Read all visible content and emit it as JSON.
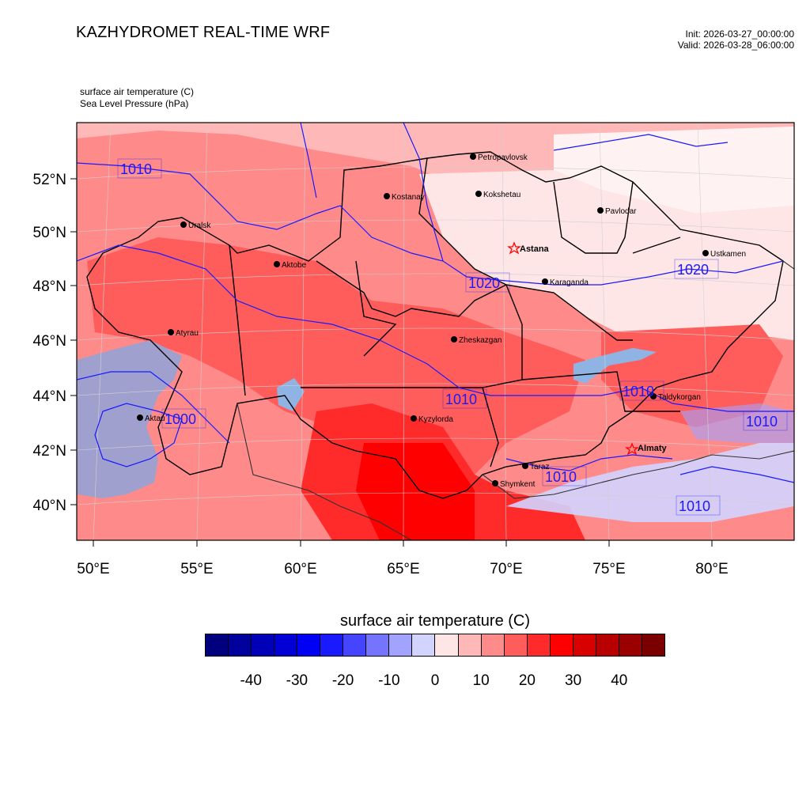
{
  "title": "KAZHYDROMET REAL-TIME WRF",
  "init": "Init: 2026-03-27_00:00:00",
  "valid": "Valid: 2026-03-28_06:00:00",
  "fields": [
    "surface air temperature   (C)",
    "Sea Level Pressure   (hPa)"
  ],
  "lon_labels": [
    "50°E",
    "55°E",
    "60°E",
    "65°E",
    "70°E",
    "75°E",
    "80°E"
  ],
  "lat_labels": [
    "52°N",
    "50°N",
    "48°N",
    "46°N",
    "44°N",
    "42°N",
    "40°N"
  ],
  "cities": [
    "Petropavlovsk",
    "Kostanay",
    "Kokshetau",
    "Pavlodar",
    "Uralsk",
    "Astana",
    "Aktobe",
    "Ustkamen",
    "Karaganda",
    "Atyrau",
    "Zheskazgan",
    "Taldykorgan",
    "Aktau",
    "Kyzylorda",
    "Almaty",
    "Taraz",
    "Shymkent"
  ],
  "isobar_labels": [
    "1010",
    "1020",
    "1020",
    "1010",
    "1010",
    "1010",
    "1000",
    "1010",
    "1010"
  ],
  "colorbar": {
    "title": "surface air temperature  (C)",
    "tick_labels": [
      "-40",
      "-30",
      "-20",
      "-10",
      "0",
      "10",
      "20",
      "30",
      "40"
    ],
    "colors": [
      "#00007f",
      "#00009c",
      "#0000b8",
      "#0000d6",
      "#0000f5",
      "#1a1aff",
      "#4545ff",
      "#7474ff",
      "#a2a2ff",
      "#d3d3ff",
      "#ffe6e6",
      "#ffb8b8",
      "#ff8a8a",
      "#ff5c5c",
      "#ff2a2a",
      "#ff0000",
      "#d90000",
      "#b80000",
      "#9a0000",
      "#7a0000"
    ]
  }
}
